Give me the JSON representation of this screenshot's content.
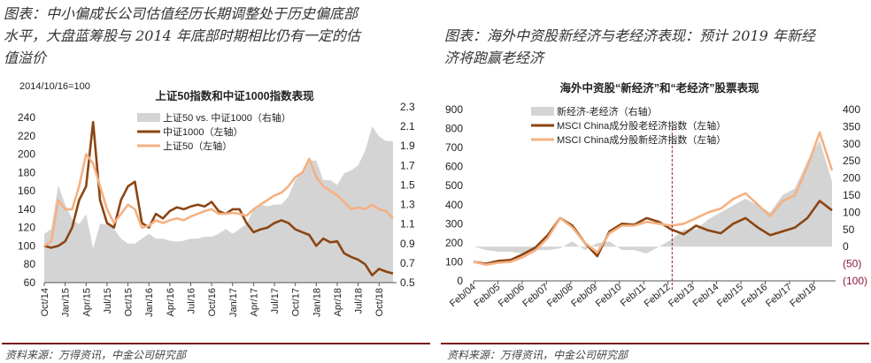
{
  "left_panel": {
    "title_lines": [
      "图表：中小偏成长公司估值经历长期调整处于历史偏底部",
      "水平，大盘蓝筹股与 2014 年底部时期相比仍有一定的估",
      "值溢价"
    ],
    "source": "资料来源：万得资讯，中金公司研究部"
  },
  "right_panel": {
    "title_lines": [
      "图表：海外中资股新经济与老经济表现：预计 2019 年新经",
      "济将跑赢老经济"
    ],
    "source": "资料来源：万得资讯，中金公司研究部"
  },
  "chart_data": [
    {
      "type": "line",
      "title": "上证50指数和中证1000指数表现",
      "note": "2014/10/16=100",
      "x_ticks": [
        "Oct/14",
        "Jan/15",
        "Apr/15",
        "Jul/15",
        "Oct/15",
        "Jan/16",
        "Apr/16",
        "Jul/16",
        "Oct/16",
        "Jan/17",
        "Apr/17",
        "Jul/17",
        "Oct/17",
        "Jan/18",
        "Apr/18",
        "Jul/18",
        "Oct/18"
      ],
      "y_left_ticks": [
        "60",
        "80",
        "100",
        "120",
        "140",
        "160",
        "180",
        "200",
        "220",
        "240"
      ],
      "y_left_range": [
        60,
        240
      ],
      "y_right_ticks": [
        "0.5",
        "0.7",
        "0.9",
        "1.1",
        "1.3",
        "1.5",
        "1.7",
        "1.9",
        "2.1",
        "2.3"
      ],
      "y_right_range": [
        0.5,
        2.3
      ],
      "x_period": "monthly Oct/14 - Dec/18",
      "series": [
        {
          "name": "上证50 vs. 中证1000（右轴）",
          "kind": "area",
          "axis": "right",
          "color": "#d4d4d4",
          "values": [
            1.0,
            1.05,
            1.5,
            1.3,
            1.15,
            1.1,
            1.2,
            0.85,
            1.1,
            1.1,
            1.05,
            0.95,
            0.9,
            0.9,
            0.95,
            1.0,
            0.95,
            0.95,
            0.93,
            0.92,
            0.93,
            0.95,
            0.95,
            0.97,
            0.97,
            1.0,
            1.05,
            1.0,
            1.05,
            1.1,
            1.25,
            1.3,
            1.28,
            1.3,
            1.3,
            1.38,
            1.55,
            1.65,
            1.75,
            1.75,
            1.55,
            1.55,
            1.5,
            1.62,
            1.65,
            1.7,
            1.85,
            2.1,
            2.0,
            1.95,
            1.95
          ]
        },
        {
          "name": "中证1000（左轴）",
          "kind": "line",
          "axis": "left",
          "color": "#8b4513",
          "values": [
            100,
            98,
            100,
            105,
            120,
            150,
            165,
            235,
            150,
            125,
            120,
            150,
            165,
            170,
            125,
            120,
            135,
            130,
            138,
            142,
            140,
            143,
            145,
            143,
            148,
            138,
            135,
            140,
            140,
            125,
            115,
            118,
            120,
            125,
            128,
            125,
            118,
            115,
            112,
            100,
            108,
            104,
            105,
            92,
            88,
            85,
            80,
            68,
            75,
            72,
            70
          ]
        },
        {
          "name": "上证50（左轴）",
          "kind": "line",
          "axis": "left",
          "color": "#f4b183",
          "values": [
            100,
            105,
            150,
            140,
            140,
            165,
            200,
            190,
            165,
            140,
            125,
            135,
            145,
            140,
            120,
            122,
            128,
            125,
            128,
            130,
            128,
            132,
            135,
            138,
            140,
            135,
            135,
            136,
            135,
            133,
            140,
            145,
            150,
            155,
            158,
            165,
            175,
            180,
            195,
            175,
            165,
            160,
            155,
            148,
            140,
            142,
            140,
            145,
            140,
            138,
            130
          ]
        }
      ]
    },
    {
      "type": "line",
      "title": "海外中资股“新经济”和“老经济”股票表现",
      "x_ticks": [
        "Feb/04",
        "Feb/05",
        "Feb/06",
        "Feb/07",
        "Feb/08",
        "Feb/09",
        "Feb/10",
        "Feb/11",
        "Feb/12",
        "Feb/13",
        "Feb/14",
        "Feb/15",
        "Feb/16",
        "Feb/17",
        "Feb/18"
      ],
      "y_left_ticks": [
        "0",
        "100",
        "200",
        "300",
        "400",
        "500",
        "600",
        "700",
        "800",
        "900"
      ],
      "y_left_range": [
        0,
        900
      ],
      "y_right_ticks": [
        "(100)",
        "(50)",
        "0",
        "50",
        "100",
        "150",
        "200",
        "250",
        "300",
        "350",
        "400"
      ],
      "y_right_range": [
        -100,
        400
      ],
      "x_period": "semiannual Feb/04 - Aug/18",
      "marker": "dashed vertical line at 2012",
      "series": [
        {
          "name": "新经济-老经济（右轴）",
          "kind": "area",
          "axis": "right",
          "color": "#d4d4d4",
          "values": [
            0,
            -10,
            -15,
            -15,
            -20,
            -10,
            -10,
            -5,
            15,
            -10,
            10,
            15,
            -10,
            -10,
            -20,
            0,
            20,
            50,
            50,
            80,
            100,
            120,
            140,
            120,
            100,
            150,
            170,
            250,
            310,
            190
          ]
        },
        {
          "name": "MSCI China成分股老经济指数（左轴）",
          "kind": "line",
          "axis": "left",
          "color": "#8b4513",
          "values": [
            100,
            90,
            105,
            110,
            140,
            175,
            240,
            330,
            290,
            200,
            130,
            260,
            300,
            295,
            330,
            310,
            270,
            245,
            290,
            265,
            250,
            300,
            330,
            280,
            240,
            260,
            280,
            330,
            420,
            370
          ]
        },
        {
          "name": "MSCI China成分股新经济指数（左轴）",
          "kind": "line",
          "axis": "left",
          "color": "#f4b183",
          "values": [
            100,
            85,
            95,
            100,
            125,
            160,
            225,
            330,
            280,
            200,
            150,
            250,
            290,
            290,
            310,
            300,
            290,
            300,
            330,
            360,
            380,
            430,
            460,
            400,
            340,
            420,
            450,
            600,
            780,
            580
          ]
        }
      ]
    }
  ]
}
